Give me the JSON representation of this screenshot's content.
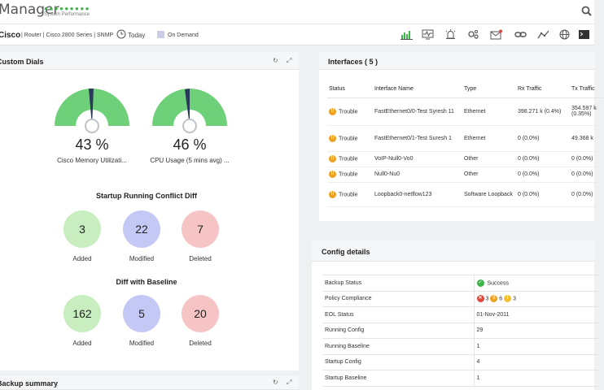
{
  "app": {
    "title": "Manager",
    "subtitle": "System Performance",
    "dots": "●●●●●●●●●"
  },
  "device": {
    "name": "Cisco",
    "meta": "| Router | Cisco 2800 Series | SNMP",
    "period": "Today",
    "poll": "On Demand"
  },
  "dials_panel": {
    "title": "Custom Dials",
    "gauges": [
      {
        "value": "43 %",
        "label": "Cisco Memory Utilizati...",
        "percent": 43
      },
      {
        "value": "46 %",
        "label": "CPU Usage (5 mins avg) ...",
        "percent": 46
      }
    ],
    "startup_title": "Startup Running Conflict Diff",
    "startup": [
      {
        "value": "3",
        "label": "Added",
        "color": "#c8eec0"
      },
      {
        "value": "22",
        "label": "Modified",
        "color": "#c4c8f4"
      },
      {
        "value": "7",
        "label": "Deleted",
        "color": "#f6c4c4"
      }
    ],
    "baseline_title": "Diff with Baseline",
    "baseline": [
      {
        "value": "162",
        "label": "Added",
        "color": "#c8eec0"
      },
      {
        "value": "5",
        "label": "Modified",
        "color": "#c4c8f4"
      },
      {
        "value": "20",
        "label": "Deleted",
        "color": "#f6c4c4"
      }
    ]
  },
  "backup_panel": {
    "title": "Backup summary"
  },
  "interfaces_panel": {
    "title": "Interfaces ( 5 )",
    "columns": [
      "Status",
      "Interface Name",
      "Type",
      "Rx Traffic",
      "Tx Traffic"
    ],
    "rows": [
      {
        "status": "Trouble",
        "name": "FastEthernet0/0-Test Syresh 11",
        "type": "Ethernet",
        "rx": "398.271 k (0.4%)",
        "tx": "354.597 k (0.35%)"
      },
      {
        "status": "Trouble",
        "name": "FastEthernet0/1-Test Suresh 1",
        "type": "Ethernet",
        "rx": "0 (0.0%)",
        "tx": "49.368 k"
      },
      {
        "status": "Trouble",
        "name": "VoIP-Null0-Vo0",
        "type": "Other",
        "rx": "0 (0.0%)",
        "tx": "0 (0.0%)"
      },
      {
        "status": "Trouble",
        "name": "Null0-Nu0",
        "type": "Other",
        "rx": "0 (0.0%)",
        "tx": "0 (0.0%)"
      },
      {
        "status": "Trouble",
        "name": "Loopback0-netflow123",
        "type": "Software Loopback",
        "rx": "0 (0.0%)",
        "tx": "0 (0.0%)"
      }
    ]
  },
  "config_panel": {
    "title": "Config details",
    "rows": [
      {
        "key": "Backup Status",
        "value": "Success"
      },
      {
        "key": "Policy Compliance",
        "value": "",
        "badges": [
          "3",
          "6",
          "3"
        ]
      },
      {
        "key": "EOL Status",
        "value": "01-Nov-2011"
      },
      {
        "key": "Running Config",
        "value": "29"
      },
      {
        "key": "Running Baseline",
        "value": "1"
      },
      {
        "key": "Startup Config",
        "value": "4"
      },
      {
        "key": "Startup Baseline",
        "value": "1"
      }
    ]
  },
  "colors": {
    "gauge_green": "#6fd07a",
    "accent_green": "#3db34a",
    "trouble_orange": "#f0a020",
    "error_red": "#e0463c"
  }
}
